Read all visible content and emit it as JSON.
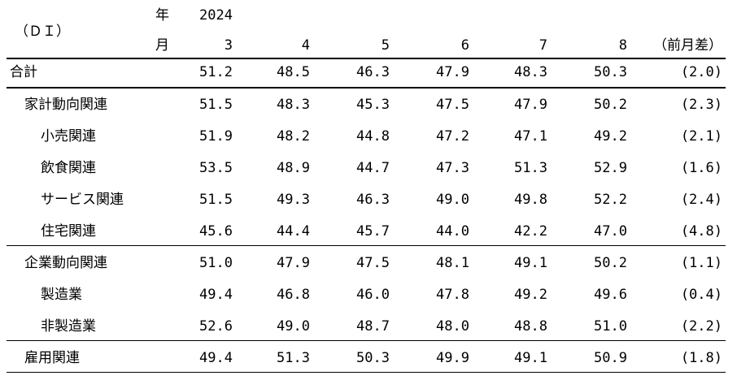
{
  "header": {
    "di_label": "（ＤＩ）",
    "year_label": "年",
    "month_label": "月",
    "year_value": "2024",
    "months": [
      "3",
      "4",
      "5",
      "6",
      "7",
      "8"
    ],
    "diff_label": "（前月差）"
  },
  "rows": [
    {
      "label": "合計",
      "values": [
        "51.2",
        "48.5",
        "46.3",
        "47.9",
        "48.3",
        "50.3"
      ],
      "diff": "(2.0)"
    },
    {
      "label": "家計動向関連",
      "values": [
        "51.5",
        "48.3",
        "45.3",
        "47.5",
        "47.9",
        "50.2"
      ],
      "diff": "(2.3)"
    },
    {
      "label": "小売関連",
      "values": [
        "51.9",
        "48.2",
        "44.8",
        "47.2",
        "47.1",
        "49.2"
      ],
      "diff": "(2.1)"
    },
    {
      "label": "飲食関連",
      "values": [
        "53.5",
        "48.9",
        "44.7",
        "47.3",
        "51.3",
        "52.9"
      ],
      "diff": "(1.6)"
    },
    {
      "label": "サービス関連",
      "values": [
        "51.5",
        "49.3",
        "46.3",
        "49.0",
        "49.8",
        "52.2"
      ],
      "diff": "(2.4)"
    },
    {
      "label": "住宅関連",
      "values": [
        "45.6",
        "44.4",
        "45.7",
        "44.0",
        "42.2",
        "47.0"
      ],
      "diff": "(4.8)"
    },
    {
      "label": "企業動向関連",
      "values": [
        "51.0",
        "47.9",
        "47.5",
        "48.1",
        "49.1",
        "50.2"
      ],
      "diff": "(1.1)"
    },
    {
      "label": "製造業",
      "values": [
        "49.4",
        "46.8",
        "46.0",
        "47.8",
        "49.2",
        "49.6"
      ],
      "diff": "(0.4)"
    },
    {
      "label": "非製造業",
      "values": [
        "52.6",
        "49.0",
        "48.7",
        "48.0",
        "48.8",
        "51.0"
      ],
      "diff": "(2.2)"
    },
    {
      "label": "雇用関連",
      "values": [
        "49.4",
        "51.3",
        "50.3",
        "49.9",
        "49.1",
        "50.9"
      ],
      "diff": "(1.8)"
    }
  ]
}
